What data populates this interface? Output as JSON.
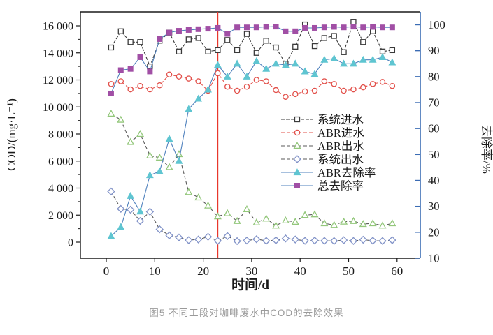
{
  "caption": "图5 不同工段对咖啡废水中COD的去除效果",
  "chart_data": {
    "type": "line",
    "x_days": [
      1,
      3,
      5,
      7,
      9,
      11,
      13,
      15,
      17,
      19,
      21,
      23,
      25,
      27,
      29,
      31,
      33,
      35,
      37,
      39,
      41,
      43,
      45,
      47,
      49,
      51,
      53,
      55,
      57,
      59
    ],
    "series": [
      {
        "key": "system-influent",
        "name": "系统进水",
        "axis": "left",
        "marker": "square-open",
        "marker_color": "#3a3a3a",
        "line_color": "#3a3a3a",
        "line_dash": "5,2",
        "values": [
          14400,
          15600,
          14800,
          14800,
          13000,
          14900,
          15500,
          14100,
          15000,
          15100,
          14100,
          14200,
          14950,
          14200,
          15400,
          14000,
          14900,
          14400,
          13200,
          14460,
          16100,
          14500,
          15100,
          15250,
          14050,
          16300,
          14800,
          15600,
          14100,
          14200
        ]
      },
      {
        "key": "abr-influent",
        "name": "ABR进水",
        "axis": "left",
        "marker": "circle-open",
        "marker_color": "#e2504a",
        "line_color": "#e2504a",
        "line_dash": "5,3",
        "values": [
          11700,
          11900,
          11300,
          11550,
          11300,
          11600,
          12400,
          12250,
          12100,
          11900,
          11200,
          12500,
          11500,
          11200,
          11500,
          12000,
          11900,
          11250,
          10750,
          10950,
          11150,
          11200,
          11900,
          11700,
          11200,
          11300,
          11450,
          11700,
          11850,
          11550
        ]
      },
      {
        "key": "abr-effluent",
        "name": "ABR出水",
        "axis": "left",
        "marker": "triangle-open",
        "marker_color": "#93c77b",
        "line_color": "#5a5a5a",
        "line_dash": "5,3",
        "values": [
          9500,
          9050,
          7400,
          8000,
          6400,
          6250,
          5550,
          6500,
          3700,
          3300,
          2700,
          1900,
          2130,
          1560,
          2430,
          1450,
          1740,
          1220,
          1600,
          1500,
          2000,
          2050,
          1390,
          1270,
          1510,
          1560,
          1340,
          1390,
          1220,
          1390
        ]
      },
      {
        "key": "system-effluent",
        "name": "系统出水",
        "axis": "left",
        "marker": "diamond-open",
        "marker_color": "#8293c8",
        "line_color": "#5a5a5a",
        "line_dash": "5,3",
        "values": [
          3750,
          2460,
          2400,
          1570,
          2250,
          950,
          500,
          350,
          150,
          200,
          400,
          100,
          450,
          80,
          120,
          220,
          100,
          140,
          270,
          200,
          100,
          120,
          100,
          90,
          150,
          90,
          180,
          110,
          90,
          150
        ]
      },
      {
        "key": "abr-removal-rate",
        "name": "ABR去除率",
        "axis": "right",
        "marker": "triangle-filled",
        "marker_color": "#5fc5d1",
        "line_color": "#4f81bd",
        "line_dash": "",
        "values": [
          18.5,
          22,
          34,
          28,
          42,
          43.5,
          56,
          47.5,
          67.5,
          71.5,
          75,
          84.5,
          80,
          85,
          80,
          86,
          83,
          85,
          84.5,
          85,
          82,
          81,
          86.5,
          87,
          85,
          85,
          86.5,
          86.5,
          87.5,
          85.5
        ]
      },
      {
        "key": "total-removal-rate",
        "name": "总去除率",
        "axis": "right",
        "marker": "square-filled",
        "marker_color": "#a14fa5",
        "line_color": "#4f81bd",
        "line_dash": "",
        "values": [
          73.5,
          82.5,
          83,
          87.5,
          82,
          94.5,
          97,
          97.7,
          98,
          98.3,
          98.5,
          98.8,
          96.5,
          99,
          99,
          99,
          99.2,
          99.3,
          97.5,
          97.5,
          98.8,
          98.8,
          99,
          99.2,
          99,
          99.3,
          99,
          99.2,
          99,
          99
        ]
      }
    ],
    "left_axis": {
      "label": "COD/(mg·L⁻¹)",
      "tick_values": [
        0,
        2000,
        4000,
        6000,
        8000,
        10000,
        12000,
        14000,
        16000
      ],
      "tick_labels": [
        "0",
        "2 000",
        "4 000",
        "6 000",
        "8 000",
        "10 000",
        "12 000",
        "14 000",
        "16 000"
      ],
      "color": "#1a1a1a"
    },
    "right_axis": {
      "label": "去除率/%",
      "tick_values": [
        10,
        20,
        30,
        40,
        50,
        60,
        70,
        80,
        90,
        100
      ],
      "tick_labels": [
        "10",
        "20",
        "30",
        "40",
        "50",
        "60",
        "70",
        "80",
        "90",
        "100"
      ],
      "color": "#3b6cb4"
    },
    "x_axis": {
      "label": "时间/d",
      "tick_values": [
        0,
        10,
        20,
        30,
        40,
        50,
        60
      ],
      "tick_labels": [
        "0",
        "10",
        "20",
        "30",
        "40",
        "50",
        "60"
      ],
      "range": [
        -5.3,
        64.9
      ]
    },
    "annotation": {
      "type": "vline",
      "x_day": 23,
      "color": "#e8372c"
    },
    "legend_position": "inside-right",
    "grid": "off"
  }
}
